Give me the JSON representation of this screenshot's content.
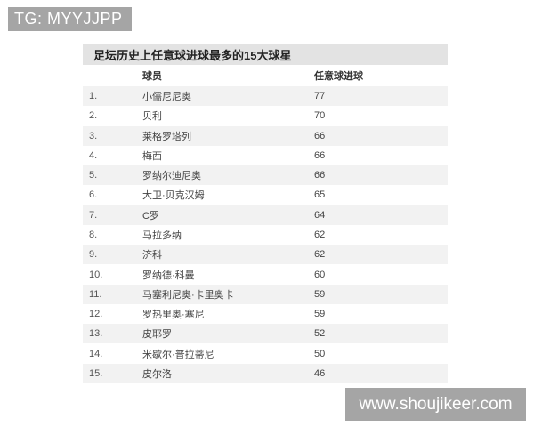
{
  "watermarks": {
    "top": "TG: MYYJJPP",
    "bottom": "www.shoujikeer.com"
  },
  "table": {
    "title": "足坛历史上任意球进球最多的15大球星",
    "headers": {
      "rank": "",
      "player": "球员",
      "goals": "任意球进球"
    },
    "rows": [
      {
        "rank": "1.",
        "player": "小儒尼尼奥",
        "goals": "77"
      },
      {
        "rank": "2.",
        "player": "贝利",
        "goals": "70"
      },
      {
        "rank": "3.",
        "player": "莱格罗塔列",
        "goals": "66"
      },
      {
        "rank": "4.",
        "player": "梅西",
        "goals": "66"
      },
      {
        "rank": "5.",
        "player": "罗纳尔迪尼奥",
        "goals": "66"
      },
      {
        "rank": "6.",
        "player": "大卫·贝克汉姆",
        "goals": "65"
      },
      {
        "rank": "7.",
        "player": "C罗",
        "goals": "64"
      },
      {
        "rank": "8.",
        "player": "马拉多纳",
        "goals": "62"
      },
      {
        "rank": "9.",
        "player": "济科",
        "goals": "62"
      },
      {
        "rank": "10.",
        "player": "罗纳德·科曼",
        "goals": "60"
      },
      {
        "rank": "11.",
        "player": "马塞利尼奥·卡里奥卡",
        "goals": "59"
      },
      {
        "rank": "12.",
        "player": "罗热里奥·塞尼",
        "goals": "59"
      },
      {
        "rank": "13.",
        "player": "皮耶罗",
        "goals": "52"
      },
      {
        "rank": "14.",
        "player": "米歇尔·普拉蒂尼",
        "goals": "50"
      },
      {
        "rank": "15.",
        "player": "皮尔洛",
        "goals": "46"
      }
    ]
  },
  "colors": {
    "watermark_bg": "#a5a5a5",
    "watermark_text": "#ffffff",
    "title_bar_bg": "#e3e3e3",
    "stripe_bg": "#f2f2f2",
    "row_text": "#444444",
    "title_text": "#222222"
  },
  "chart_data": {
    "type": "table",
    "title": "足坛历史上任意球进球最多的15大球星",
    "columns": [
      "球员",
      "任意球进球"
    ],
    "categories": [
      "小儒尼尼奥",
      "贝利",
      "莱格罗塔列",
      "梅西",
      "罗纳尔迪尼奥",
      "大卫·贝克汉姆",
      "C罗",
      "马拉多纳",
      "济科",
      "罗纳德·科曼",
      "马塞利尼奥·卡里奥卡",
      "罗热里奥·塞尼",
      "皮耶罗",
      "米歇尔·普拉蒂尼",
      "皮尔洛"
    ],
    "values": [
      77,
      70,
      66,
      66,
      66,
      65,
      64,
      62,
      62,
      60,
      59,
      59,
      52,
      50,
      46
    ]
  }
}
